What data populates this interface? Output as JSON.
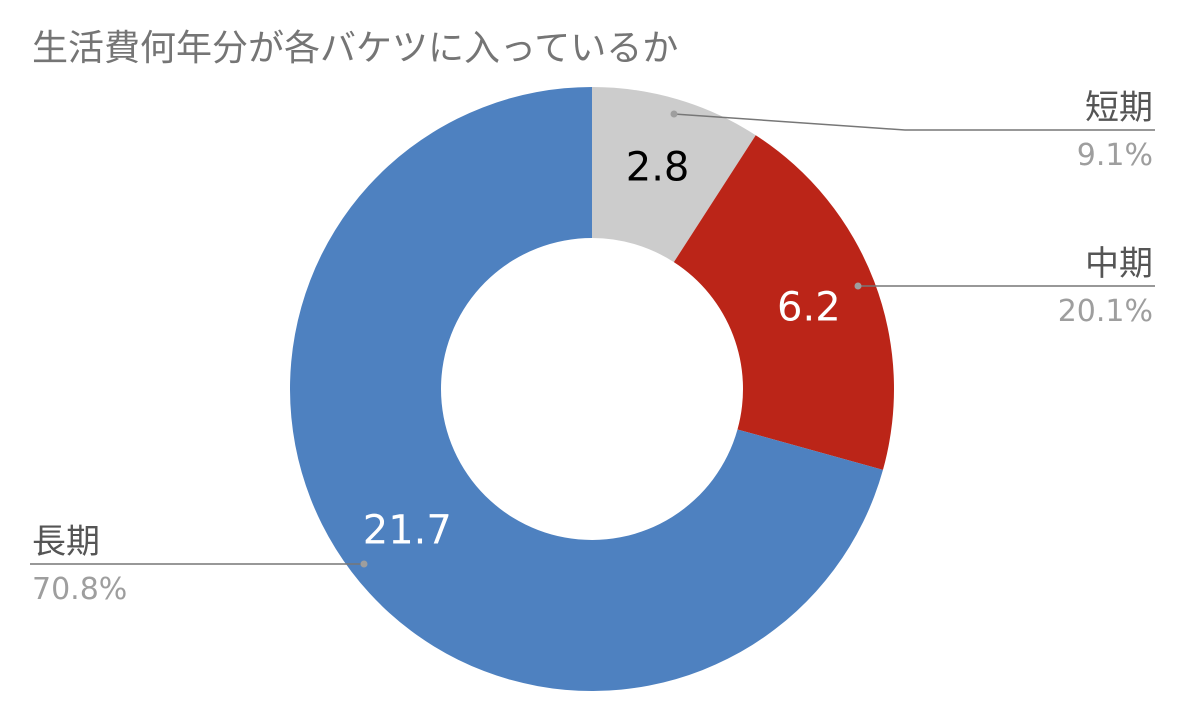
{
  "chart_data": {
    "type": "pie",
    "donut": true,
    "title": "生活費何年分が各バケツに入っているか",
    "slices": [
      {
        "label": "短期",
        "value": 2.8,
        "value_label": "2.8",
        "percent_label": "9.1%",
        "color": "#cccccc",
        "value_color": "#000000"
      },
      {
        "label": "中期",
        "value": 6.2,
        "value_label": "6.2",
        "percent_label": "20.1%",
        "color": "#bb2518",
        "value_color": "#ffffff"
      },
      {
        "label": "長期",
        "value": 21.7,
        "value_label": "21.7",
        "percent_label": "70.8%",
        "color": "#4e81c0",
        "value_color": "#ffffff"
      }
    ],
    "legend": "none",
    "leader_line_color": "#777777"
  }
}
